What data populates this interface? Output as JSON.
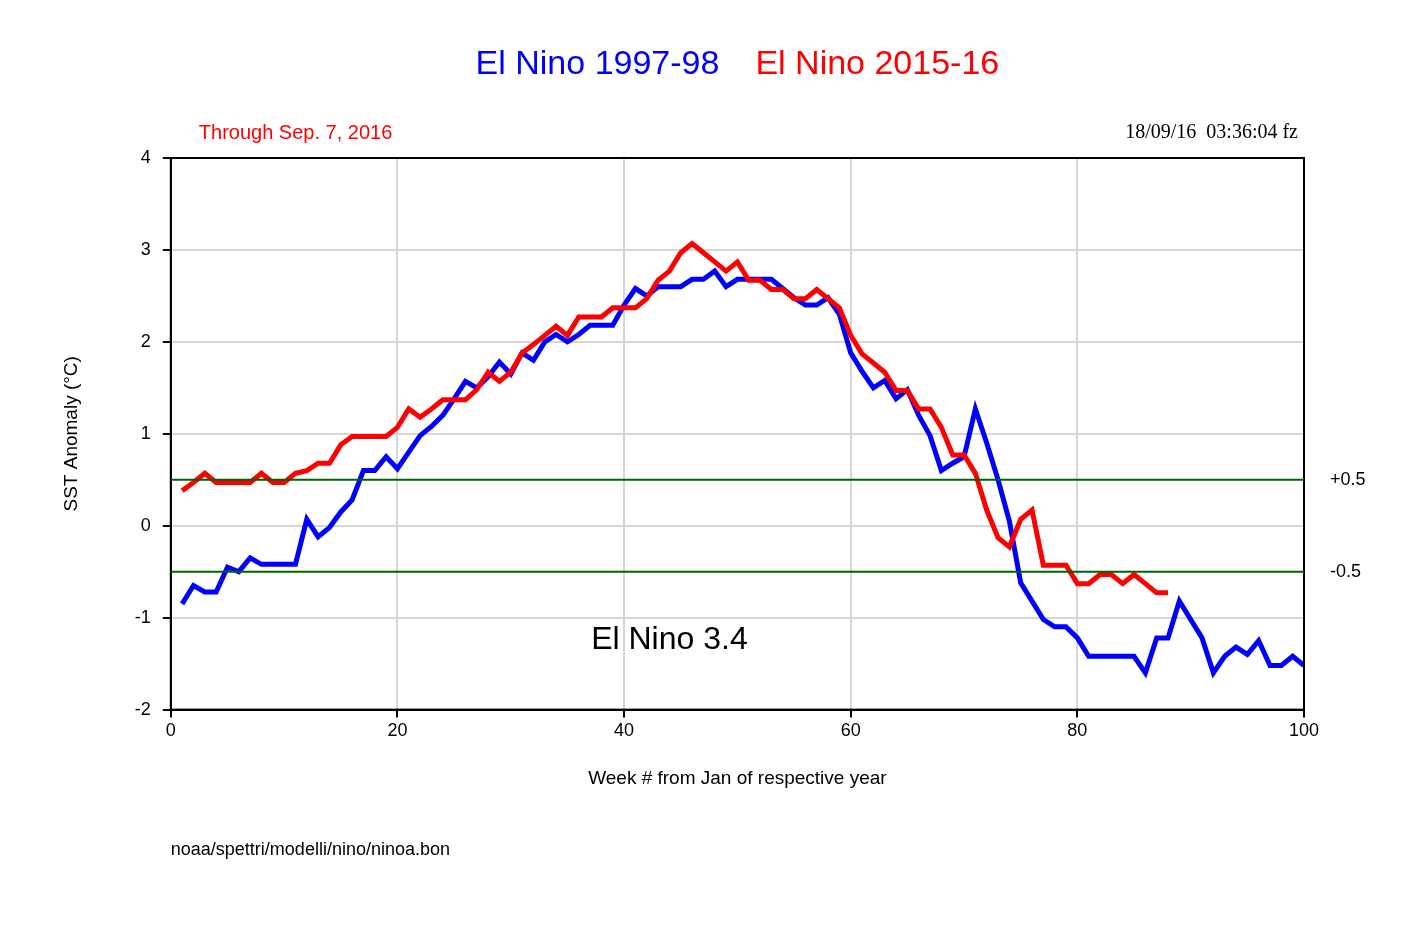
{
  "chart_data": {
    "type": "line",
    "subtitle": "Through Sep. 7, 2016",
    "timestamp": "18/09/16  03:36:04 fz",
    "x_label": "Week # from Jan of respective year",
    "y_label": "SST Anomaly (°C)",
    "footer": "noaa/spettri/modelli/nino/ninoa.bon",
    "annotations": [
      {
        "text": "El Nino 3.4",
        "x": 44,
        "y": -1.25
      }
    ],
    "hlines": [
      {
        "value": 0.5,
        "label": "+0.5",
        "color": "#006400"
      },
      {
        "value": -0.5,
        "label": "-0.5",
        "color": "#006400"
      }
    ],
    "legend": "top",
    "grid": true,
    "xlim": [
      0,
      100
    ],
    "xticks": [
      0,
      20,
      40,
      60,
      80,
      100
    ],
    "ylim": [
      -2,
      4
    ],
    "yticks": [
      -2,
      -1,
      0,
      1,
      2,
      3,
      4
    ],
    "x": [
      1,
      2,
      3,
      4,
      5,
      6,
      7,
      8,
      9,
      10,
      11,
      12,
      13,
      14,
      15,
      16,
      17,
      18,
      19,
      20,
      21,
      22,
      23,
      24,
      25,
      26,
      27,
      28,
      29,
      30,
      31,
      32,
      33,
      34,
      35,
      36,
      37,
      38,
      39,
      40,
      41,
      42,
      43,
      44,
      45,
      46,
      47,
      48,
      49,
      50,
      51,
      52,
      53,
      54,
      55,
      56,
      57,
      58,
      59,
      60,
      61,
      62,
      63,
      64,
      65,
      66,
      67,
      68,
      69,
      70,
      71,
      72,
      73,
      74,
      75,
      76,
      77,
      78,
      79,
      80,
      81,
      82,
      83,
      84,
      85,
      86,
      87,
      88,
      89,
      90,
      91,
      92,
      93,
      94,
      95,
      96,
      97,
      98,
      99,
      100
    ],
    "series": [
      {
        "name": "El Nino 1997-98",
        "color": "#0000ff",
        "values": [
          -0.85,
          -0.65,
          -0.72,
          -0.72,
          -0.45,
          -0.5,
          -0.35,
          -0.42,
          -0.42,
          -0.42,
          -0.42,
          0.07,
          -0.12,
          -0.02,
          0.15,
          0.28,
          0.6,
          0.6,
          0.75,
          0.62,
          0.8,
          0.98,
          1.08,
          1.2,
          1.38,
          1.57,
          1.5,
          1.62,
          1.78,
          1.65,
          1.88,
          1.8,
          2.0,
          2.08,
          2.0,
          2.08,
          2.18,
          2.18,
          2.18,
          2.4,
          2.58,
          2.5,
          2.6,
          2.6,
          2.6,
          2.68,
          2.68,
          2.77,
          2.6,
          2.68,
          2.68,
          2.68,
          2.68,
          2.58,
          2.48,
          2.4,
          2.4,
          2.48,
          2.3,
          1.88,
          1.68,
          1.5,
          1.58,
          1.38,
          1.48,
          1.2,
          0.98,
          0.6,
          0.68,
          0.75,
          1.27,
          0.9,
          0.5,
          0.05,
          -0.62,
          -0.82,
          -1.02,
          -1.1,
          -1.1,
          -1.22,
          -1.42,
          -1.42,
          -1.42,
          -1.42,
          -1.42,
          -1.6,
          -1.22,
          -1.22,
          -0.82,
          -1.02,
          -1.22,
          -1.6,
          -1.42,
          -1.32,
          -1.4,
          -1.25,
          -1.52,
          -1.52,
          -1.42,
          -1.52
        ]
      },
      {
        "name": "El Nino 2015-16",
        "color": "#ff0000",
        "values": [
          0.38,
          0.47,
          0.57,
          0.47,
          0.47,
          0.47,
          0.47,
          0.57,
          0.47,
          0.47,
          0.57,
          0.6,
          0.68,
          0.68,
          0.88,
          0.97,
          0.97,
          0.97,
          0.97,
          1.07,
          1.27,
          1.18,
          1.27,
          1.37,
          1.37,
          1.37,
          1.48,
          1.67,
          1.57,
          1.67,
          1.88,
          1.97,
          2.07,
          2.17,
          2.07,
          2.27,
          2.27,
          2.27,
          2.37,
          2.37,
          2.37,
          2.47,
          2.67,
          2.77,
          2.97,
          3.07,
          2.97,
          2.87,
          2.77,
          2.87,
          2.67,
          2.67,
          2.57,
          2.57,
          2.47,
          2.47,
          2.57,
          2.47,
          2.37,
          2.07,
          1.87,
          1.77,
          1.67,
          1.47,
          1.47,
          1.27,
          1.27,
          1.07,
          0.77,
          0.77,
          0.57,
          0.17,
          -0.13,
          -0.23,
          0.07,
          0.17,
          -0.43,
          -0.43,
          -0.43,
          -0.63,
          -0.63,
          -0.53,
          -0.53,
          -0.63,
          -0.53,
          -0.63,
          -0.73,
          -0.73,
          null,
          null,
          null,
          null,
          null,
          null,
          null,
          null,
          null,
          null,
          null,
          null
        ]
      }
    ]
  }
}
